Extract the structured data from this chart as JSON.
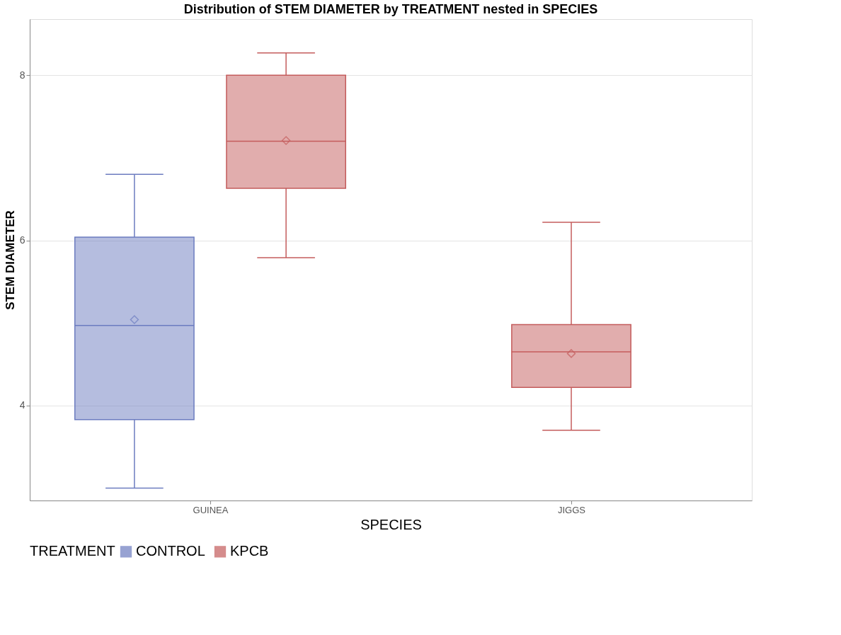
{
  "chart_data": {
    "type": "box",
    "title": "Distribution of STEM DIAMETER by TREATMENT nested in SPECIES",
    "xlabel": "SPECIES",
    "ylabel": "STEM DIAMETER",
    "legend_title": "TREATMENT",
    "categories": [
      "GUINEA",
      "JIGGS"
    ],
    "series": [
      {
        "name": "CONTROL",
        "color": "#6c7cc0",
        "boxes": [
          {
            "low": 3.0,
            "q1": 3.83,
            "median": 4.97,
            "q3": 6.04,
            "high": 6.8,
            "mean": 5.04
          },
          null
        ]
      },
      {
        "name": "KPCB",
        "color": "#c45c5c",
        "boxes": [
          {
            "low": 5.79,
            "q1": 6.63,
            "median": 7.2,
            "q3": 8.0,
            "high": 8.27,
            "mean": 7.21
          },
          {
            "low": 3.7,
            "q1": 4.22,
            "median": 4.65,
            "q3": 4.98,
            "high": 6.22,
            "mean": 4.63
          }
        ]
      }
    ],
    "ylim": [
      2.85,
      8.68
    ],
    "yticks": [
      4,
      6,
      8
    ],
    "grid": "y",
    "legend": "bottom",
    "marker": "diamond"
  }
}
